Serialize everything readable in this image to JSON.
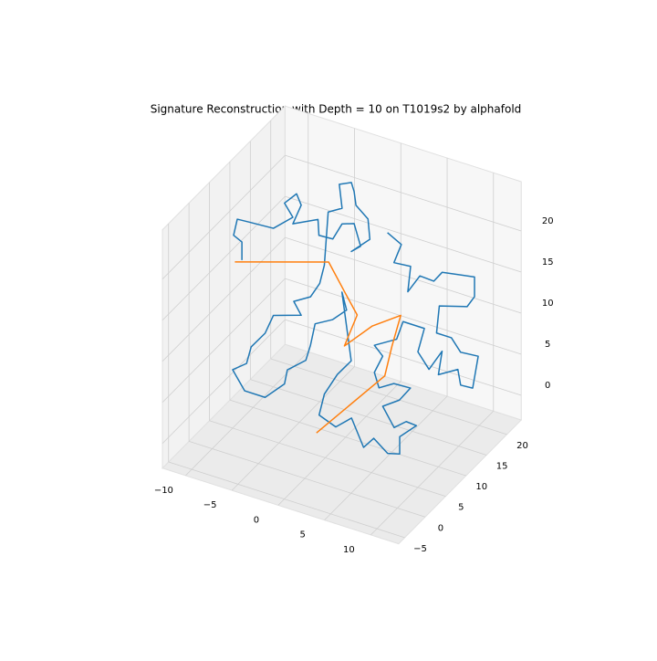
{
  "chart_data": {
    "type": "line3d",
    "title": "Signature Reconstruction with Depth = 10 on T1019s2 by alphafold",
    "xlim": [
      -12.5,
      13
    ],
    "ylim": [
      -6.5,
      23.5
    ],
    "zlim": [
      -3,
      26
    ],
    "xticks": [
      {
        "value": -10,
        "label": "−10"
      },
      {
        "value": -5,
        "label": "−5"
      },
      0,
      5,
      10
    ],
    "yticks": [
      {
        "value": -5,
        "label": "−5"
      },
      0,
      5,
      10,
      15,
      20
    ],
    "zticks": [
      0,
      5,
      10,
      15,
      20
    ],
    "grid": true,
    "series": [
      {
        "color": "#1f77b4",
        "x": [
          -11.2,
          -11.2,
          -12.1,
          -11.7,
          -10.5,
          -7.8,
          -5.7,
          -6.6,
          -5.3,
          -4.8,
          -5.7,
          -7.4,
          -7.3,
          -5.8,
          -4.8,
          -3.5,
          -2.8,
          -3.8,
          -1.8,
          -2.0,
          -3.3,
          -3.5,
          -3.8,
          -5.1,
          -4.8,
          -6.3,
          -2.3,
          -2.8,
          -3.8,
          -5.6,
          -4.8,
          -7.8,
          -8.7,
          -10.2,
          -10.7,
          -12.2,
          -10.9,
          -8.7,
          -6.6,
          -6.3,
          -4.3,
          -3.8,
          -3.3,
          -1.4,
          0.1,
          -0.4,
          0.6,
          -0.9,
          -2.3,
          -1.1,
          0.7,
          2.4,
          3.7,
          4.8,
          6.3,
          7.6,
          7.6,
          9.4,
          8.3,
          7.0,
          4.0,
          5.8,
          7.0,
          5.2,
          3.6,
          3.1,
          4.0,
          3.1,
          5.5,
          6.2,
          8.5,
          7.8,
          9.0,
          6.0,
          5.6,
          7.7,
          8.0,
          9.3,
          9.9,
          8.0,
          7.0,
          5.4,
          5.7,
          8.7,
          9.5,
          9.5,
          6.0,
          5.1,
          3.6,
          2.3,
          2.6,
          0.8,
          1.6,
          0.1
        ],
        "y": [
          10,
          10,
          10,
          10,
          10,
          10,
          10,
          10,
          10,
          10,
          10,
          20,
          20,
          20,
          20,
          20,
          20,
          20,
          20,
          20,
          20,
          20,
          20,
          20,
          20,
          20,
          10,
          10,
          10,
          10,
          10,
          10,
          10,
          10,
          10,
          10,
          10,
          10,
          10,
          10,
          10,
          10,
          10,
          10,
          10,
          10,
          10,
          10,
          10,
          6,
          6,
          6,
          6,
          6,
          6,
          6,
          6,
          6,
          6,
          6,
          10,
          10,
          10,
          10,
          10,
          10,
          10,
          10,
          10,
          10,
          10,
          10,
          10,
          20,
          20,
          20,
          20,
          20,
          20,
          20,
          20,
          20,
          20,
          20,
          20,
          20,
          20,
          20,
          20,
          20,
          20,
          20,
          20,
          20
        ],
        "z": [
          14.5,
          16.7,
          17.2,
          19.3,
          19.4,
          19.6,
          21.7,
          23.1,
          24.7,
          23.5,
          20.9,
          15.8,
          13.9,
          14.0,
          16.2,
          16.7,
          14.2,
          13.2,
          15.4,
          17.8,
          19.0,
          20.6,
          21.6,
          20.9,
          18.1,
          17.1,
          17.1,
          14.7,
          12.7,
          11.5,
          10.1,
          9.0,
          6.5,
          4.3,
          2.1,
          0.8,
          -1.3,
          -1.3,
          1.1,
          2.9,
          4.8,
          6.8,
          9.6,
          10.8,
          12.5,
          14.5,
          6.5,
          4.3,
          1.4,
          1.3,
          0.5,
          2.2,
          -0.9,
          0.6,
          -0.7,
          -0.3,
          1.8,
          3.8,
          3.9,
          2.7,
          2.2,
          3.6,
          5.5,
          5.4,
          4.3,
          6.0,
          8.3,
          9.3,
          10.9,
          13.3,
          13.3,
          10.2,
          8.5,
          4.6,
          1.6,
          3.0,
          1.2,
          1.3,
          5.4,
          5.2,
          6.6,
          6.6,
          10.0,
          11.0,
          12.5,
          14.9,
          14.2,
          12.8,
          12.9,
          10.5,
          13.7,
          13.5,
          16.0,
          16.9
        ]
      },
      {
        "color": "#ff7f0e",
        "x": [
          -11.3,
          -3.6,
          -1.8,
          -0.3,
          -1.5,
          0.5,
          3.3,
          2.4,
          2.9,
          0.6
        ],
        "y": [
          8.5,
          14.0,
          13.9,
          13.5,
          13.1,
          15.4,
          16.0,
          15.9,
          13.0,
          1.5
        ],
        "z": [
          15,
          15,
          12,
          10,
          6,
          8,
          10,
          6,
          4,
          2
        ]
      }
    ]
  }
}
